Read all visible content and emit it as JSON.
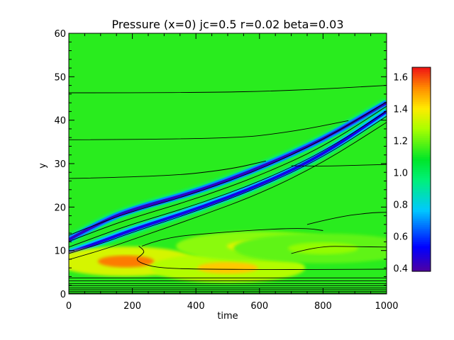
{
  "chart_data": {
    "type": "heatmap",
    "title": "Pressure (x=0) jc=0.5 r=0.02 beta=0.03",
    "xlabel": "time",
    "ylabel": "y",
    "xlim": [
      0,
      1000
    ],
    "ylim": [
      0,
      60
    ],
    "xticks": [
      "0",
      "200",
      "400",
      "600",
      "800",
      "1000"
    ],
    "yticks": [
      "0",
      "10",
      "20",
      "30",
      "40",
      "50",
      "60"
    ],
    "colorbar": {
      "min": 0.38,
      "max": 1.66,
      "ticks": [
        "0.4",
        "0.6",
        "0.8",
        "1.0",
        "1.2",
        "1.4",
        "1.6"
      ],
      "colormap": "rainbow"
    },
    "background_value": 1.13,
    "features": [
      {
        "kind": "low-pressure band",
        "value": 0.45,
        "ridge": [
          [
            0,
            12.5
          ],
          [
            100,
            16.5
          ],
          [
            200,
            19.5
          ],
          [
            400,
            23.5
          ],
          [
            600,
            29.0
          ],
          [
            800,
            35.5
          ],
          [
            1000,
            44.0
          ]
        ]
      },
      {
        "kind": "low-pressure band",
        "value": 0.5,
        "ridge": [
          [
            0,
            9.5
          ],
          [
            100,
            12.0
          ],
          [
            200,
            14.8
          ],
          [
            400,
            19.5
          ],
          [
            600,
            25.0
          ],
          [
            800,
            32.0
          ],
          [
            1000,
            42.0
          ]
        ]
      },
      {
        "kind": "high-pressure region",
        "value": 1.55,
        "center": [
          180,
          7.5
        ]
      },
      {
        "kind": "high-pressure region",
        "value": 1.45,
        "center": [
          500,
          6.0
        ]
      },
      {
        "kind": "high-pressure region",
        "value": 1.35,
        "center": [
          600,
          11.0
        ]
      },
      {
        "kind": "high-pressure region",
        "value": 1.25,
        "center": [
          800,
          10.5
        ]
      }
    ],
    "contours": [
      [
        [
          0,
          46.3
        ],
        [
          400,
          46.3
        ],
        [
          700,
          46.8
        ],
        [
          1000,
          48.0
        ]
      ],
      [
        [
          0,
          35.5
        ],
        [
          500,
          35.6
        ],
        [
          700,
          37.3
        ],
        [
          880,
          39.9
        ]
      ],
      [
        [
          0,
          26.6
        ],
        [
          300,
          27.0
        ],
        [
          500,
          28.6
        ],
        [
          620,
          30.6
        ]
      ],
      [
        [
          0,
          13.5
        ],
        [
          100,
          16.4
        ],
        [
          200,
          19.0
        ],
        [
          400,
          23.2
        ],
        [
          600,
          28.6
        ],
        [
          800,
          35.4
        ],
        [
          1000,
          44.2
        ]
      ],
      [
        [
          0,
          12.1
        ],
        [
          100,
          14.9
        ],
        [
          200,
          17.5
        ],
        [
          400,
          21.9
        ],
        [
          600,
          27.2
        ],
        [
          800,
          33.8
        ],
        [
          1000,
          43.2
        ]
      ],
      [
        [
          0,
          10.8
        ],
        [
          100,
          13.5
        ],
        [
          200,
          16.1
        ],
        [
          400,
          20.5
        ],
        [
          600,
          25.8
        ],
        [
          800,
          32.6
        ],
        [
          1000,
          42.1
        ]
      ],
      [
        [
          0,
          9.3
        ],
        [
          100,
          11.5
        ],
        [
          200,
          14.2
        ],
        [
          400,
          19.0
        ],
        [
          600,
          24.5
        ],
        [
          800,
          31.4
        ],
        [
          1000,
          40.9
        ]
      ],
      [
        [
          0,
          7.9
        ],
        [
          100,
          10.0
        ],
        [
          200,
          12.5
        ],
        [
          400,
          17.6
        ],
        [
          600,
          23.0
        ],
        [
          800,
          30.2
        ],
        [
          1000,
          39.5
        ]
      ],
      [
        [
          700,
          29.5
        ],
        [
          800,
          29.4
        ],
        [
          900,
          29.6
        ],
        [
          1000,
          29.8
        ]
      ],
      [
        [
          750,
          16.0
        ],
        [
          850,
          17.8
        ],
        [
          950,
          18.7
        ],
        [
          1000,
          18.8
        ]
      ],
      [
        [
          230,
          11.0
        ],
        [
          300,
          13.0
        ],
        [
          450,
          14.0
        ],
        [
          600,
          14.8
        ],
        [
          740,
          15.2
        ],
        [
          800,
          14.6
        ]
      ],
      [
        [
          220,
          11.0
        ],
        [
          240,
          10.0
        ],
        [
          230,
          9.0
        ],
        [
          210,
          8.0
        ],
        [
          230,
          7.0
        ],
        [
          280,
          6.0
        ],
        [
          400,
          5.7
        ],
        [
          700,
          5.6
        ],
        [
          1000,
          5.7
        ]
      ],
      [
        [
          700,
          9.3
        ],
        [
          780,
          11.0
        ],
        [
          900,
          10.9
        ],
        [
          1000,
          10.8
        ]
      ],
      [
        [
          0,
          3.7
        ],
        [
          1000,
          3.7
        ]
      ],
      [
        [
          0,
          3.0
        ],
        [
          1000,
          3.0
        ]
      ],
      [
        [
          0,
          2.4
        ],
        [
          1000,
          2.4
        ]
      ],
      [
        [
          0,
          1.9
        ],
        [
          1000,
          1.9
        ]
      ],
      [
        [
          0,
          1.4
        ],
        [
          1000,
          1.4
        ]
      ],
      [
        [
          0,
          1.0
        ],
        [
          1000,
          1.0
        ]
      ],
      [
        [
          0,
          0.6
        ],
        [
          1000,
          0.6
        ]
      ],
      [
        [
          0,
          0.2
        ],
        [
          1000,
          0.2
        ]
      ]
    ]
  }
}
